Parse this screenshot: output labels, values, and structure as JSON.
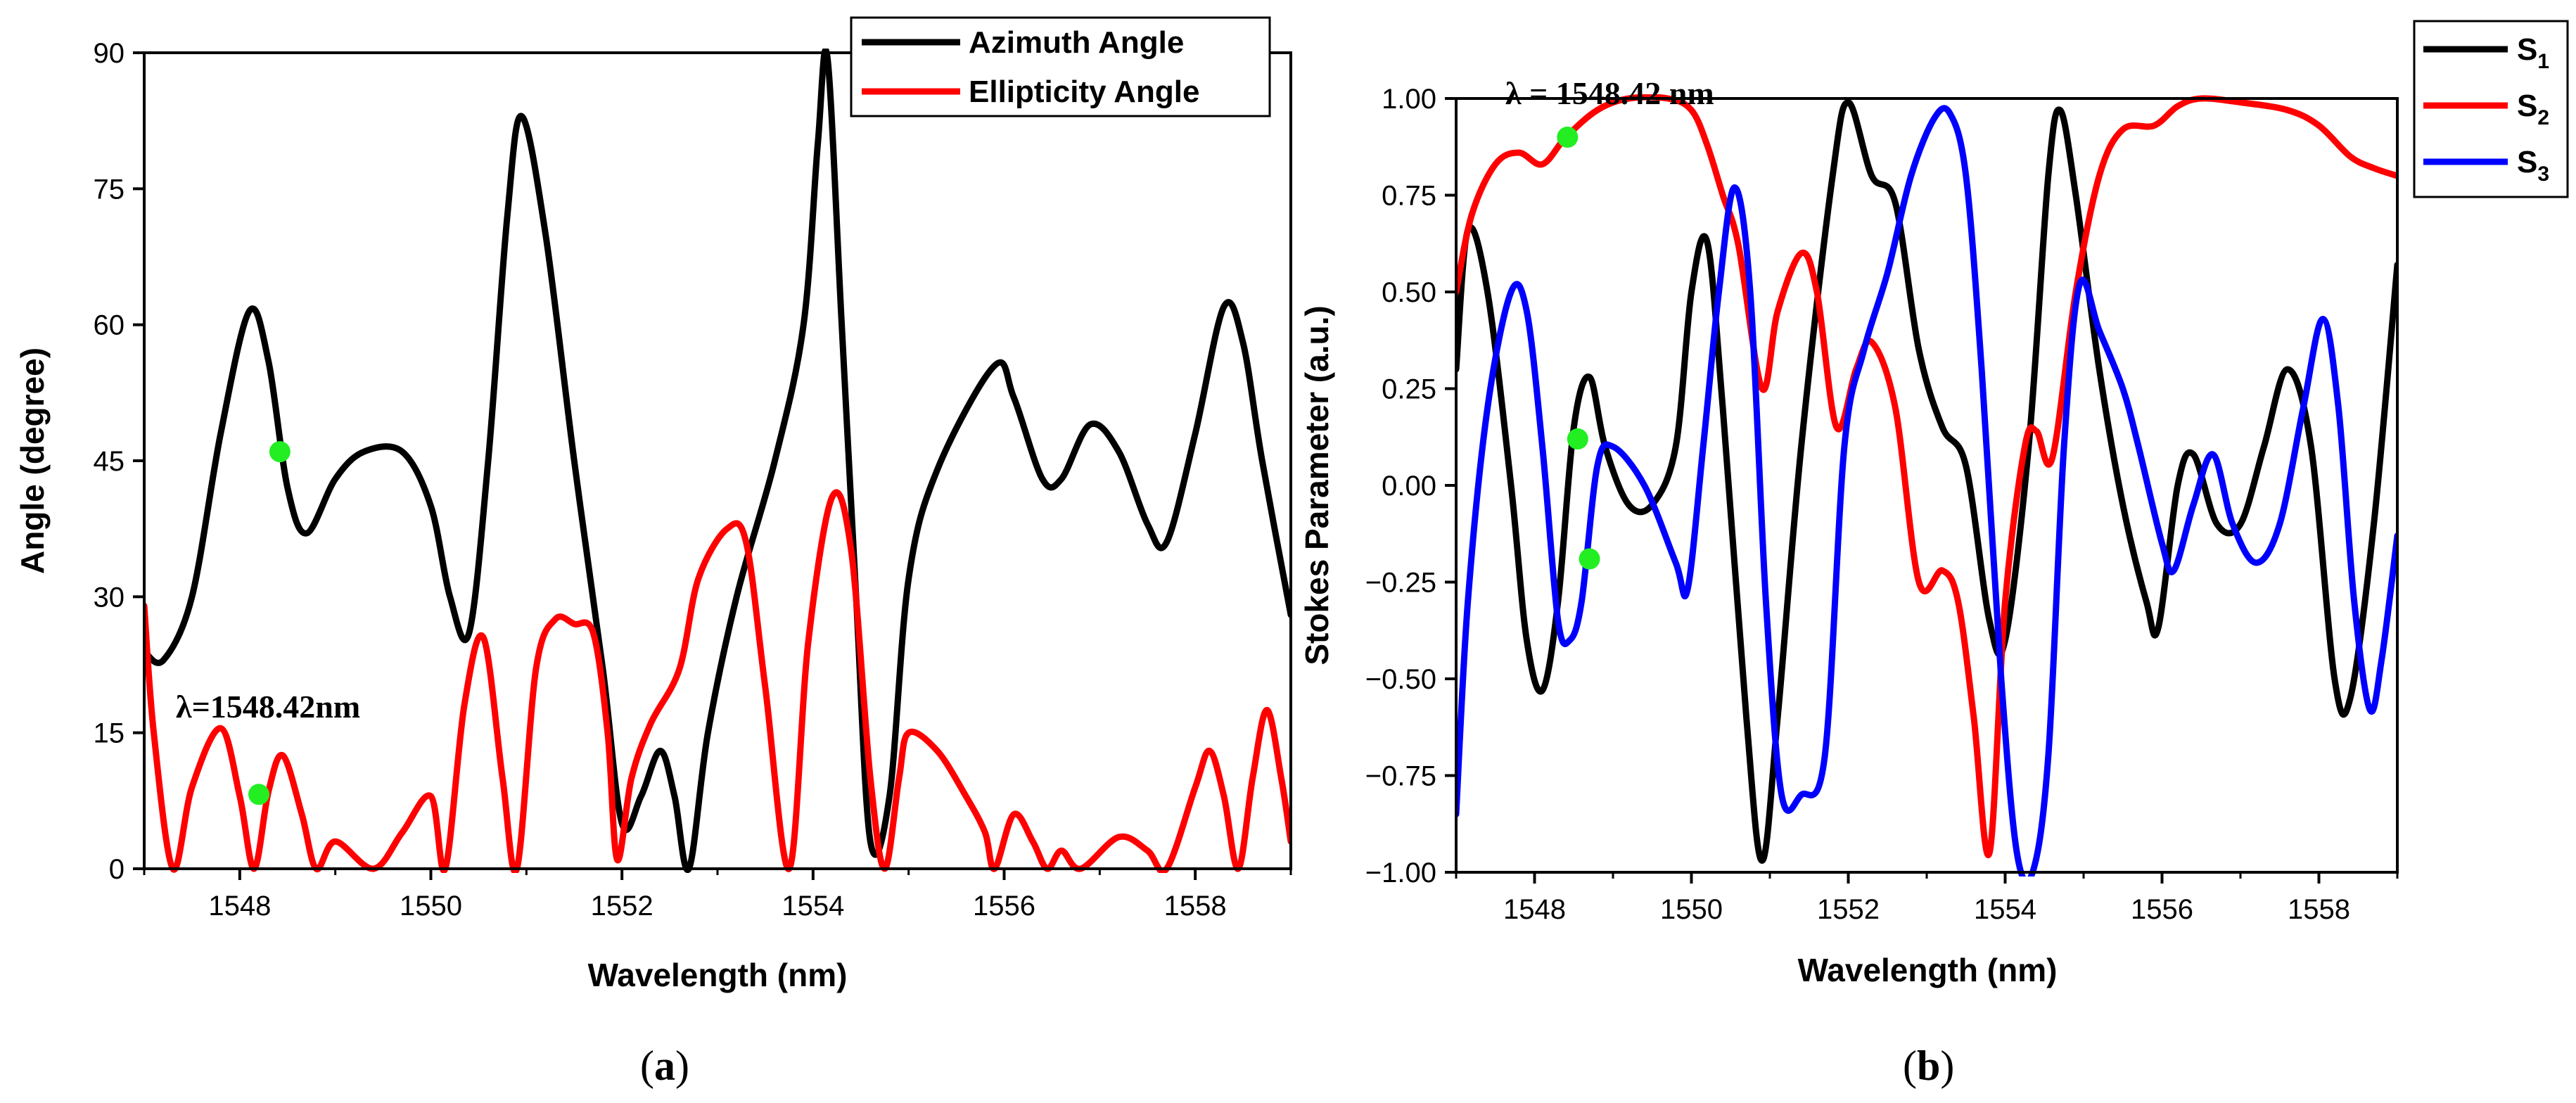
{
  "colors": {
    "black": "#000000",
    "red": "#ff0000",
    "blue": "#0000ff",
    "marker": "#22ee22"
  },
  "chart_data": [
    {
      "type": "line",
      "panel_label_open": "(",
      "panel_label_letter": "a",
      "panel_label_close": ")",
      "xlabel": "Wavelength (nm)",
      "ylabel": "Angle (degree)",
      "xlim": [
        1547,
        1559
      ],
      "ylim": [
        0,
        90
      ],
      "xticks": [
        1548,
        1550,
        1552,
        1554,
        1556,
        1558
      ],
      "yticks": [
        0,
        15,
        30,
        45,
        60,
        75,
        90
      ],
      "annotation": "λ=1548.42nm",
      "markers": [
        [
          1548.42,
          46
        ],
        [
          1548.2,
          8.2
        ]
      ],
      "series": [
        {
          "name": "Azimuth Angle",
          "color": "#000000",
          "points": [
            [
              1547,
              24
            ],
            [
              1547.2,
              23
            ],
            [
              1547.5,
              30
            ],
            [
              1547.8,
              48
            ],
            [
              1548.1,
              61.5
            ],
            [
              1548.3,
              56
            ],
            [
              1548.5,
              42
            ],
            [
              1548.7,
              37
            ],
            [
              1549,
              43
            ],
            [
              1549.3,
              46
            ],
            [
              1549.7,
              46
            ],
            [
              1550,
              40
            ],
            [
              1550.2,
              30
            ],
            [
              1550.4,
              26
            ],
            [
              1550.6,
              45
            ],
            [
              1550.8,
              72
            ],
            [
              1550.95,
              83
            ],
            [
              1551.2,
              70
            ],
            [
              1551.5,
              45
            ],
            [
              1551.8,
              22
            ],
            [
              1552,
              5
            ],
            [
              1552.2,
              8
            ],
            [
              1552.4,
              13
            ],
            [
              1552.55,
              8
            ],
            [
              1552.7,
              0
            ],
            [
              1552.9,
              15
            ],
            [
              1553.2,
              30
            ],
            [
              1553.6,
              45
            ],
            [
              1553.9,
              60
            ],
            [
              1554.05,
              80
            ],
            [
              1554.15,
              89.5
            ],
            [
              1554.3,
              60
            ],
            [
              1554.45,
              30
            ],
            [
              1554.6,
              3
            ],
            [
              1554.8,
              8
            ],
            [
              1555,
              32
            ],
            [
              1555.3,
              44
            ],
            [
              1555.9,
              55.5
            ],
            [
              1556.1,
              52
            ],
            [
              1556.4,
              43
            ],
            [
              1556.6,
              43
            ],
            [
              1556.9,
              49
            ],
            [
              1557.2,
              46
            ],
            [
              1557.5,
              38
            ],
            [
              1557.7,
              36
            ],
            [
              1558,
              48
            ],
            [
              1558.3,
              62
            ],
            [
              1558.5,
              58
            ],
            [
              1558.7,
              45
            ],
            [
              1559,
              28
            ]
          ]
        },
        {
          "name": "Ellipticity Angle",
          "color": "#ff0000",
          "points": [
            [
              1547,
              29
            ],
            [
              1547.1,
              15
            ],
            [
              1547.3,
              0
            ],
            [
              1547.5,
              9
            ],
            [
              1547.8,
              15.5
            ],
            [
              1548,
              8
            ],
            [
              1548.15,
              0
            ],
            [
              1548.3,
              8.5
            ],
            [
              1548.45,
              12.5
            ],
            [
              1548.65,
              6
            ],
            [
              1548.8,
              0
            ],
            [
              1549,
              3
            ],
            [
              1549.4,
              0
            ],
            [
              1549.7,
              4
            ],
            [
              1550,
              8
            ],
            [
              1550.15,
              0
            ],
            [
              1550.35,
              18
            ],
            [
              1550.55,
              25.5
            ],
            [
              1550.75,
              10
            ],
            [
              1550.9,
              0
            ],
            [
              1551.1,
              22
            ],
            [
              1551.3,
              27.5
            ],
            [
              1551.5,
              27
            ],
            [
              1551.7,
              26
            ],
            [
              1551.85,
              15
            ],
            [
              1551.95,
              1
            ],
            [
              1552.1,
              10
            ],
            [
              1552.3,
              16
            ],
            [
              1552.6,
              22
            ],
            [
              1552.8,
              32
            ],
            [
              1553.1,
              37.5
            ],
            [
              1553.3,
              36
            ],
            [
              1553.5,
              20
            ],
            [
              1553.75,
              0
            ],
            [
              1553.95,
              25
            ],
            [
              1554.2,
              41
            ],
            [
              1554.4,
              35
            ],
            [
              1554.6,
              10
            ],
            [
              1554.75,
              0
            ],
            [
              1554.9,
              10
            ],
            [
              1555,
              15
            ],
            [
              1555.3,
              13
            ],
            [
              1555.6,
              8
            ],
            [
              1555.8,
              4
            ],
            [
              1555.9,
              0
            ],
            [
              1556.1,
              6
            ],
            [
              1556.3,
              3
            ],
            [
              1556.45,
              0
            ],
            [
              1556.6,
              2
            ],
            [
              1556.8,
              0
            ],
            [
              1557.2,
              3.5
            ],
            [
              1557.5,
              2
            ],
            [
              1557.7,
              0
            ],
            [
              1558,
              9
            ],
            [
              1558.15,
              13
            ],
            [
              1558.3,
              8
            ],
            [
              1558.45,
              0
            ],
            [
              1558.6,
              10
            ],
            [
              1558.75,
              17.5
            ],
            [
              1558.9,
              10
            ],
            [
              1559,
              3
            ]
          ]
        }
      ]
    },
    {
      "type": "line",
      "panel_label_open": "(",
      "panel_label_letter": "b",
      "panel_label_close": ")",
      "xlabel": "Wavelength (nm)",
      "ylabel": "Stokes Parameter (a.u.)",
      "xlim": [
        1547,
        1559
      ],
      "ylim": [
        -1.0,
        1.0
      ],
      "xticks": [
        1548,
        1550,
        1552,
        1554,
        1556,
        1558
      ],
      "yticks": [
        -1.0,
        -0.75,
        -0.5,
        -0.25,
        0.0,
        0.25,
        0.5,
        0.75,
        1.0
      ],
      "ytick_labels": [
        "−1.00",
        "−0.75",
        "−0.50",
        "−0.25",
        "0.00",
        "0.25",
        "0.50",
        "0.75",
        "1.00"
      ],
      "annotation": "λ = 1548.42 nm",
      "markers": [
        [
          1548.42,
          0.9
        ],
        [
          1548.55,
          0.12
        ],
        [
          1548.7,
          -0.19
        ]
      ],
      "series": [
        {
          "name": "S",
          "sub": "1",
          "color": "#000000",
          "points": [
            [
              1547,
              0.3
            ],
            [
              1547.15,
              0.66
            ],
            [
              1547.4,
              0.5
            ],
            [
              1547.7,
              0
            ],
            [
              1547.9,
              -0.4
            ],
            [
              1548.1,
              -0.53
            ],
            [
              1548.3,
              -0.3
            ],
            [
              1548.5,
              0.15
            ],
            [
              1548.7,
              0.28
            ],
            [
              1548.9,
              0.1
            ],
            [
              1549.2,
              -0.05
            ],
            [
              1549.5,
              -0.05
            ],
            [
              1549.8,
              0.1
            ],
            [
              1550,
              0.5
            ],
            [
              1550.2,
              0.63
            ],
            [
              1550.4,
              0.2
            ],
            [
              1550.7,
              -0.6
            ],
            [
              1550.9,
              -0.97
            ],
            [
              1551.1,
              -0.6
            ],
            [
              1551.4,
              0.1
            ],
            [
              1551.8,
              0.8
            ],
            [
              1552,
              0.99
            ],
            [
              1552.3,
              0.8
            ],
            [
              1552.6,
              0.73
            ],
            [
              1552.9,
              0.35
            ],
            [
              1553.2,
              0.15
            ],
            [
              1553.5,
              0.05
            ],
            [
              1553.8,
              -0.35
            ],
            [
              1554,
              -0.4
            ],
            [
              1554.3,
              0.1
            ],
            [
              1554.55,
              0.8
            ],
            [
              1554.7,
              0.97
            ],
            [
              1554.9,
              0.75
            ],
            [
              1555.2,
              0.3
            ],
            [
              1555.5,
              -0.05
            ],
            [
              1555.8,
              -0.3
            ],
            [
              1555.95,
              -0.37
            ],
            [
              1556.2,
              0
            ],
            [
              1556.4,
              0.08
            ],
            [
              1556.7,
              -0.1
            ],
            [
              1557,
              -0.1
            ],
            [
              1557.3,
              0.1
            ],
            [
              1557.6,
              0.3
            ],
            [
              1557.9,
              0.1
            ],
            [
              1558.2,
              -0.5
            ],
            [
              1558.4,
              -0.55
            ],
            [
              1558.7,
              -0.1
            ],
            [
              1559,
              0.57
            ]
          ]
        },
        {
          "name": "S",
          "sub": "2",
          "color": "#ff0000",
          "points": [
            [
              1547,
              0.5
            ],
            [
              1547.2,
              0.7
            ],
            [
              1547.5,
              0.83
            ],
            [
              1547.8,
              0.86
            ],
            [
              1548.1,
              0.83
            ],
            [
              1548.4,
              0.9
            ],
            [
              1548.8,
              0.97
            ],
            [
              1549.2,
              1.0
            ],
            [
              1549.7,
              1.0
            ],
            [
              1550,
              0.97
            ],
            [
              1550.2,
              0.88
            ],
            [
              1550.4,
              0.75
            ],
            [
              1550.6,
              0.62
            ],
            [
              1550.9,
              0.25
            ],
            [
              1551.1,
              0.45
            ],
            [
              1551.4,
              0.6
            ],
            [
              1551.6,
              0.5
            ],
            [
              1551.85,
              0.15
            ],
            [
              1552.1,
              0.3
            ],
            [
              1552.3,
              0.37
            ],
            [
              1552.6,
              0.2
            ],
            [
              1552.9,
              -0.25
            ],
            [
              1553.2,
              -0.22
            ],
            [
              1553.4,
              -0.3
            ],
            [
              1553.6,
              -0.6
            ],
            [
              1553.8,
              -0.95
            ],
            [
              1554,
              -0.3
            ],
            [
              1554.25,
              0.1
            ],
            [
              1554.4,
              0.14
            ],
            [
              1554.6,
              0.07
            ],
            [
              1554.9,
              0.5
            ],
            [
              1555.2,
              0.8
            ],
            [
              1555.5,
              0.92
            ],
            [
              1555.9,
              0.93
            ],
            [
              1556.2,
              0.98
            ],
            [
              1556.5,
              1.0
            ],
            [
              1557,
              0.99
            ],
            [
              1557.6,
              0.97
            ],
            [
              1558,
              0.93
            ],
            [
              1558.4,
              0.85
            ],
            [
              1558.7,
              0.82
            ],
            [
              1559,
              0.8
            ]
          ]
        },
        {
          "name": "S",
          "sub": "3",
          "color": "#0000ff",
          "points": [
            [
              1547,
              -0.85
            ],
            [
              1547.15,
              -0.3
            ],
            [
              1547.4,
              0.2
            ],
            [
              1547.7,
              0.5
            ],
            [
              1547.9,
              0.45
            ],
            [
              1548.1,
              0.1
            ],
            [
              1548.3,
              -0.35
            ],
            [
              1548.45,
              -0.4
            ],
            [
              1548.6,
              -0.3
            ],
            [
              1548.8,
              0.05
            ],
            [
              1549,
              0.1
            ],
            [
              1549.4,
              0
            ],
            [
              1549.8,
              -0.2
            ],
            [
              1549.95,
              -0.27
            ],
            [
              1550.15,
              0.1
            ],
            [
              1550.35,
              0.5
            ],
            [
              1550.55,
              0.77
            ],
            [
              1550.75,
              0.5
            ],
            [
              1550.95,
              -0.3
            ],
            [
              1551.15,
              -0.8
            ],
            [
              1551.4,
              -0.8
            ],
            [
              1551.7,
              -0.7
            ],
            [
              1551.95,
              0.1
            ],
            [
              1552.2,
              0.35
            ],
            [
              1552.5,
              0.55
            ],
            [
              1552.8,
              0.8
            ],
            [
              1553.1,
              0.95
            ],
            [
              1553.3,
              0.96
            ],
            [
              1553.5,
              0.8
            ],
            [
              1553.7,
              0.3
            ],
            [
              1553.95,
              -0.5
            ],
            [
              1554.15,
              -0.95
            ],
            [
              1554.35,
              -1.0
            ],
            [
              1554.55,
              -0.7
            ],
            [
              1554.75,
              0.1
            ],
            [
              1554.95,
              0.52
            ],
            [
              1555.2,
              0.4
            ],
            [
              1555.5,
              0.25
            ],
            [
              1555.7,
              0.1
            ],
            [
              1556,
              -0.15
            ],
            [
              1556.15,
              -0.22
            ],
            [
              1556.4,
              -0.05
            ],
            [
              1556.65,
              0.08
            ],
            [
              1556.9,
              -0.1
            ],
            [
              1557.2,
              -0.2
            ],
            [
              1557.5,
              -0.1
            ],
            [
              1557.8,
              0.2
            ],
            [
              1558.05,
              0.43
            ],
            [
              1558.25,
              0.2
            ],
            [
              1558.45,
              -0.3
            ],
            [
              1558.65,
              -0.58
            ],
            [
              1558.8,
              -0.45
            ],
            [
              1559,
              -0.13
            ]
          ]
        }
      ]
    }
  ]
}
